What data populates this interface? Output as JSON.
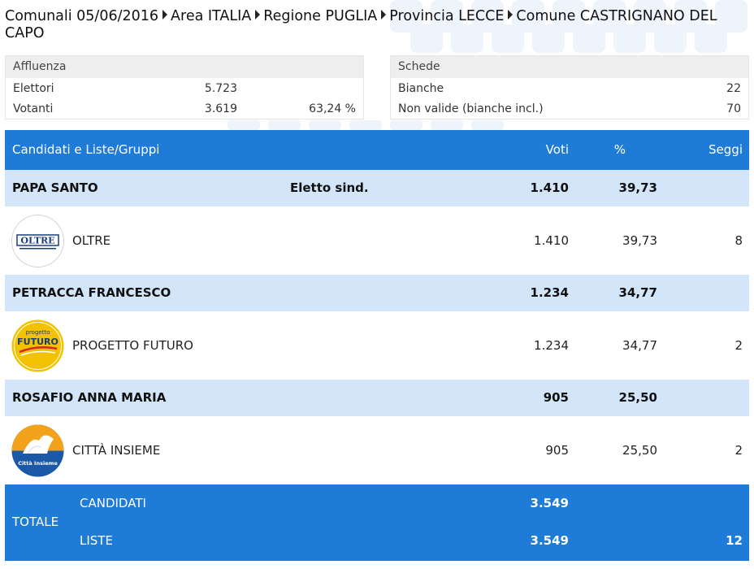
{
  "breadcrumb": {
    "election": "Comunali 05/06/2016",
    "area": "Area ITALIA",
    "regione": "Regione PUGLIA",
    "provincia": "Provincia LECCE",
    "comune": "Comune CASTRIGNANO DEL CAPO"
  },
  "affluenza": {
    "title": "Affluenza",
    "elettori_label": "Elettori",
    "elettori_value": "5.723",
    "votanti_label": "Votanti",
    "votanti_value": "3.619",
    "votanti_pct": "63,24 %"
  },
  "schede": {
    "title": "Schede",
    "bianche_label": "Bianche",
    "bianche_value": "22",
    "nonvalide_label": "Non valide (bianche incl.)",
    "nonvalide_value": "70"
  },
  "table": {
    "headers": {
      "name": "Candidati e Liste/Gruppi",
      "voti": "Voti",
      "pct": "%",
      "seggi": "Seggi"
    },
    "rows": [
      {
        "candidate": "PAPA SANTO",
        "note": "Eletto sind.",
        "voti": "1.410",
        "pct": "39,73",
        "list": {
          "name": "OLTRE",
          "logo_text": "OLTRE",
          "voti": "1.410",
          "pct": "39,73",
          "seggi": "8"
        }
      },
      {
        "candidate": "PETRACCA FRANCESCO",
        "note": "",
        "voti": "1.234",
        "pct": "34,77",
        "list": {
          "name": "PROGETTO FUTURO",
          "logo_text_top": "progetto",
          "logo_text_main": "FUTURO",
          "voti": "1.234",
          "pct": "34,77",
          "seggi": "2"
        }
      },
      {
        "candidate": "ROSAFIO ANNA MARIA",
        "note": "",
        "voti": "905",
        "pct": "25,50",
        "list": {
          "name": "CITTÀ INSIEME",
          "logo_text": "Città Insieme",
          "voti": "905",
          "pct": "25,50",
          "seggi": "2"
        }
      }
    ]
  },
  "totale": {
    "label": "TOTALE",
    "candidati_label": "CANDIDATI",
    "candidati_voti": "3.549",
    "liste_label": "LISTE",
    "liste_voti": "3.549",
    "liste_seggi": "12"
  },
  "colors": {
    "header_blue": "#1f7bd8",
    "candidate_row": "#d2e5f9",
    "box_header": "#eeeeee"
  }
}
